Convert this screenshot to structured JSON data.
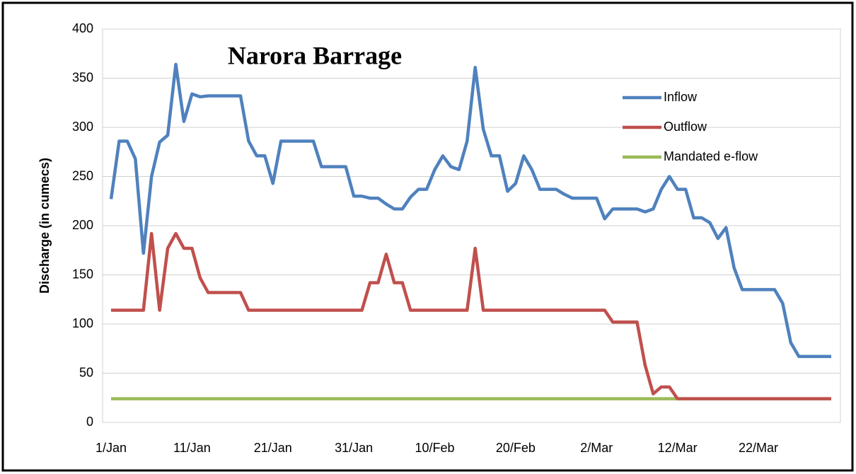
{
  "chart_data": {
    "type": "line",
    "title": "Narora Barrage",
    "y_label": "Discharge (in cumecs)",
    "categories": [
      "1/Jan",
      null,
      null,
      null,
      null,
      null,
      null,
      null,
      null,
      null,
      "11/Jan",
      null,
      null,
      null,
      null,
      null,
      null,
      null,
      null,
      null,
      "21/Jan",
      null,
      null,
      null,
      null,
      null,
      null,
      null,
      null,
      null,
      "31/Jan",
      null,
      null,
      null,
      null,
      null,
      null,
      null,
      null,
      null,
      "10/Feb",
      null,
      null,
      null,
      null,
      null,
      null,
      null,
      null,
      null,
      "20/Feb",
      null,
      null,
      null,
      null,
      null,
      null,
      null,
      null,
      null,
      "2/Mar",
      null,
      null,
      null,
      null,
      null,
      null,
      null,
      null,
      null,
      "12/Mar",
      null,
      null,
      null,
      null,
      null,
      null,
      null,
      null,
      null,
      "22/Mar",
      null,
      null,
      null,
      null,
      null,
      null,
      null,
      null,
      null
    ],
    "series": [
      {
        "name": "Inflow",
        "color": "#4f81bd",
        "values": [
          227,
          286,
          286,
          268,
          172,
          250,
          285,
          292,
          364,
          306,
          334,
          331,
          332,
          332,
          332,
          332,
          332,
          286,
          271,
          271,
          243,
          286,
          286,
          286,
          286,
          286,
          260,
          260,
          260,
          260,
          230,
          230,
          228,
          228,
          222,
          217,
          217,
          229,
          237,
          237,
          257,
          271,
          260,
          257,
          286,
          361,
          298,
          271,
          271,
          235,
          243,
          271,
          257,
          237,
          237,
          237,
          232,
          228,
          228,
          228,
          228,
          207,
          217,
          217,
          217,
          217,
          214,
          217,
          237,
          250,
          237,
          237,
          208,
          208,
          203,
          187,
          198,
          157,
          135,
          135,
          135,
          135,
          135,
          121,
          81,
          67,
          67,
          67,
          67,
          67
        ]
      },
      {
        "name": "Outflow",
        "color": "#c0504d",
        "values": [
          114,
          114,
          114,
          114,
          114,
          192,
          114,
          177,
          192,
          177,
          177,
          147,
          132,
          132,
          132,
          132,
          132,
          114,
          114,
          114,
          114,
          114,
          114,
          114,
          114,
          114,
          114,
          114,
          114,
          114,
          114,
          114,
          142,
          142,
          171,
          142,
          142,
          114,
          114,
          114,
          114,
          114,
          114,
          114,
          114,
          177,
          114,
          114,
          114,
          114,
          114,
          114,
          114,
          114,
          114,
          114,
          114,
          114,
          114,
          114,
          114,
          114,
          102,
          102,
          102,
          102,
          58,
          29,
          36,
          36,
          24,
          24,
          24,
          24,
          24,
          24,
          24,
          24,
          24,
          24,
          24,
          24,
          24,
          24,
          24,
          24,
          24,
          24,
          24,
          24
        ]
      },
      {
        "name": "Mandated e-flow",
        "color": "#9bbb59",
        "values": [
          24,
          24,
          24,
          24,
          24,
          24,
          24,
          24,
          24,
          24,
          24,
          24,
          24,
          24,
          24,
          24,
          24,
          24,
          24,
          24,
          24,
          24,
          24,
          24,
          24,
          24,
          24,
          24,
          24,
          24,
          24,
          24,
          24,
          24,
          24,
          24,
          24,
          24,
          24,
          24,
          24,
          24,
          24,
          24,
          24,
          24,
          24,
          24,
          24,
          24,
          24,
          24,
          24,
          24,
          24,
          24,
          24,
          24,
          24,
          24,
          24,
          24,
          24,
          24,
          24,
          24,
          24,
          24,
          24,
          24,
          24,
          24,
          24,
          24,
          24,
          24,
          24,
          24,
          24,
          24,
          24,
          24,
          24,
          24,
          24,
          24,
          24,
          24,
          24,
          24
        ]
      }
    ],
    "ylim": [
      0,
      400
    ],
    "yticks": [
      0,
      50,
      100,
      150,
      200,
      250,
      300,
      350,
      400
    ],
    "grid": true,
    "legend": "upper right"
  }
}
